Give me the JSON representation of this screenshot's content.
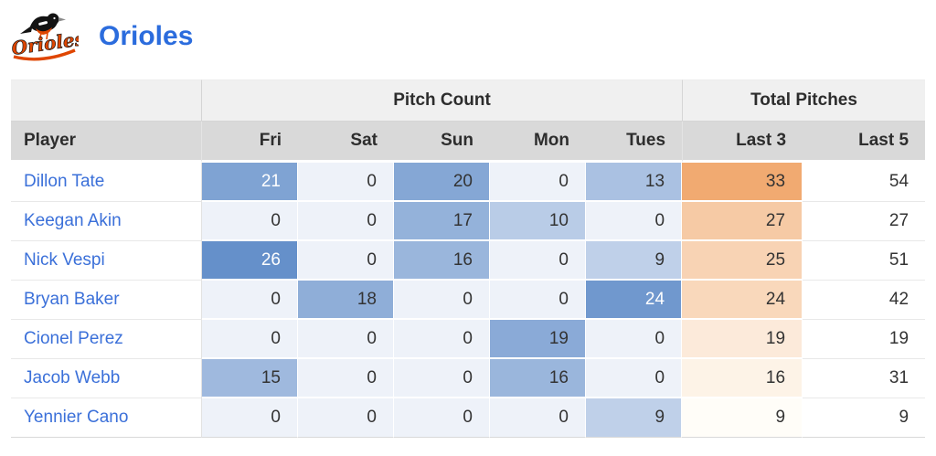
{
  "header": {
    "team_name": "Orioles"
  },
  "logo": {
    "name": "orioles-logo",
    "script_text": "Orioles"
  },
  "colors": {
    "title_blue": "#2b6cdd",
    "link_blue": "#3b70d9",
    "header_group_bg": "#f0f0f0",
    "header_col_bg": "#d9d9d9",
    "header_text": "#2d2d2d",
    "cell_text": "#333333",
    "logo_orange": "#DF4601",
    "heat_blue_max": "#6590ca",
    "heat_orange_max": "#f1aa71"
  },
  "heat_scales": {
    "days": {
      "min": 0,
      "max": 26,
      "start": "#eef2f9",
      "end": "#6590ca",
      "gamma": 1.0,
      "white_text_min": 21
    },
    "last3": {
      "min": 9,
      "max": 33,
      "start": "#fffdf8",
      "end": "#f1aa71",
      "gamma": 1.7
    }
  },
  "chart_data": {
    "type": "heatmap",
    "title": "Orioles",
    "column_groups": [
      {
        "label": "",
        "colspan": 1
      },
      {
        "label": "Pitch Count",
        "colspan": 5
      },
      {
        "label": "Total Pitches",
        "colspan": 2
      }
    ],
    "columns": [
      "Player",
      "Fri",
      "Sat",
      "Sun",
      "Mon",
      "Tues",
      "Last 3",
      "Last 5"
    ],
    "rows": [
      {
        "player": "Dillon Tate",
        "days": [
          21,
          0,
          20,
          0,
          13
        ],
        "last3": 33,
        "last5": 54
      },
      {
        "player": "Keegan Akin",
        "days": [
          0,
          0,
          17,
          10,
          0
        ],
        "last3": 27,
        "last5": 27
      },
      {
        "player": "Nick Vespi",
        "days": [
          26,
          0,
          16,
          0,
          9
        ],
        "last3": 25,
        "last5": 51
      },
      {
        "player": "Bryan Baker",
        "days": [
          0,
          18,
          0,
          0,
          24
        ],
        "last3": 24,
        "last5": 42
      },
      {
        "player": "Cionel Perez",
        "days": [
          0,
          0,
          0,
          19,
          0
        ],
        "last3": 19,
        "last5": 19
      },
      {
        "player": "Jacob Webb",
        "days": [
          15,
          0,
          0,
          16,
          0
        ],
        "last3": 16,
        "last5": 31
      },
      {
        "player": "Yennier Cano",
        "days": [
          0,
          0,
          0,
          0,
          9
        ],
        "last3": 9,
        "last5": 9
      }
    ]
  }
}
